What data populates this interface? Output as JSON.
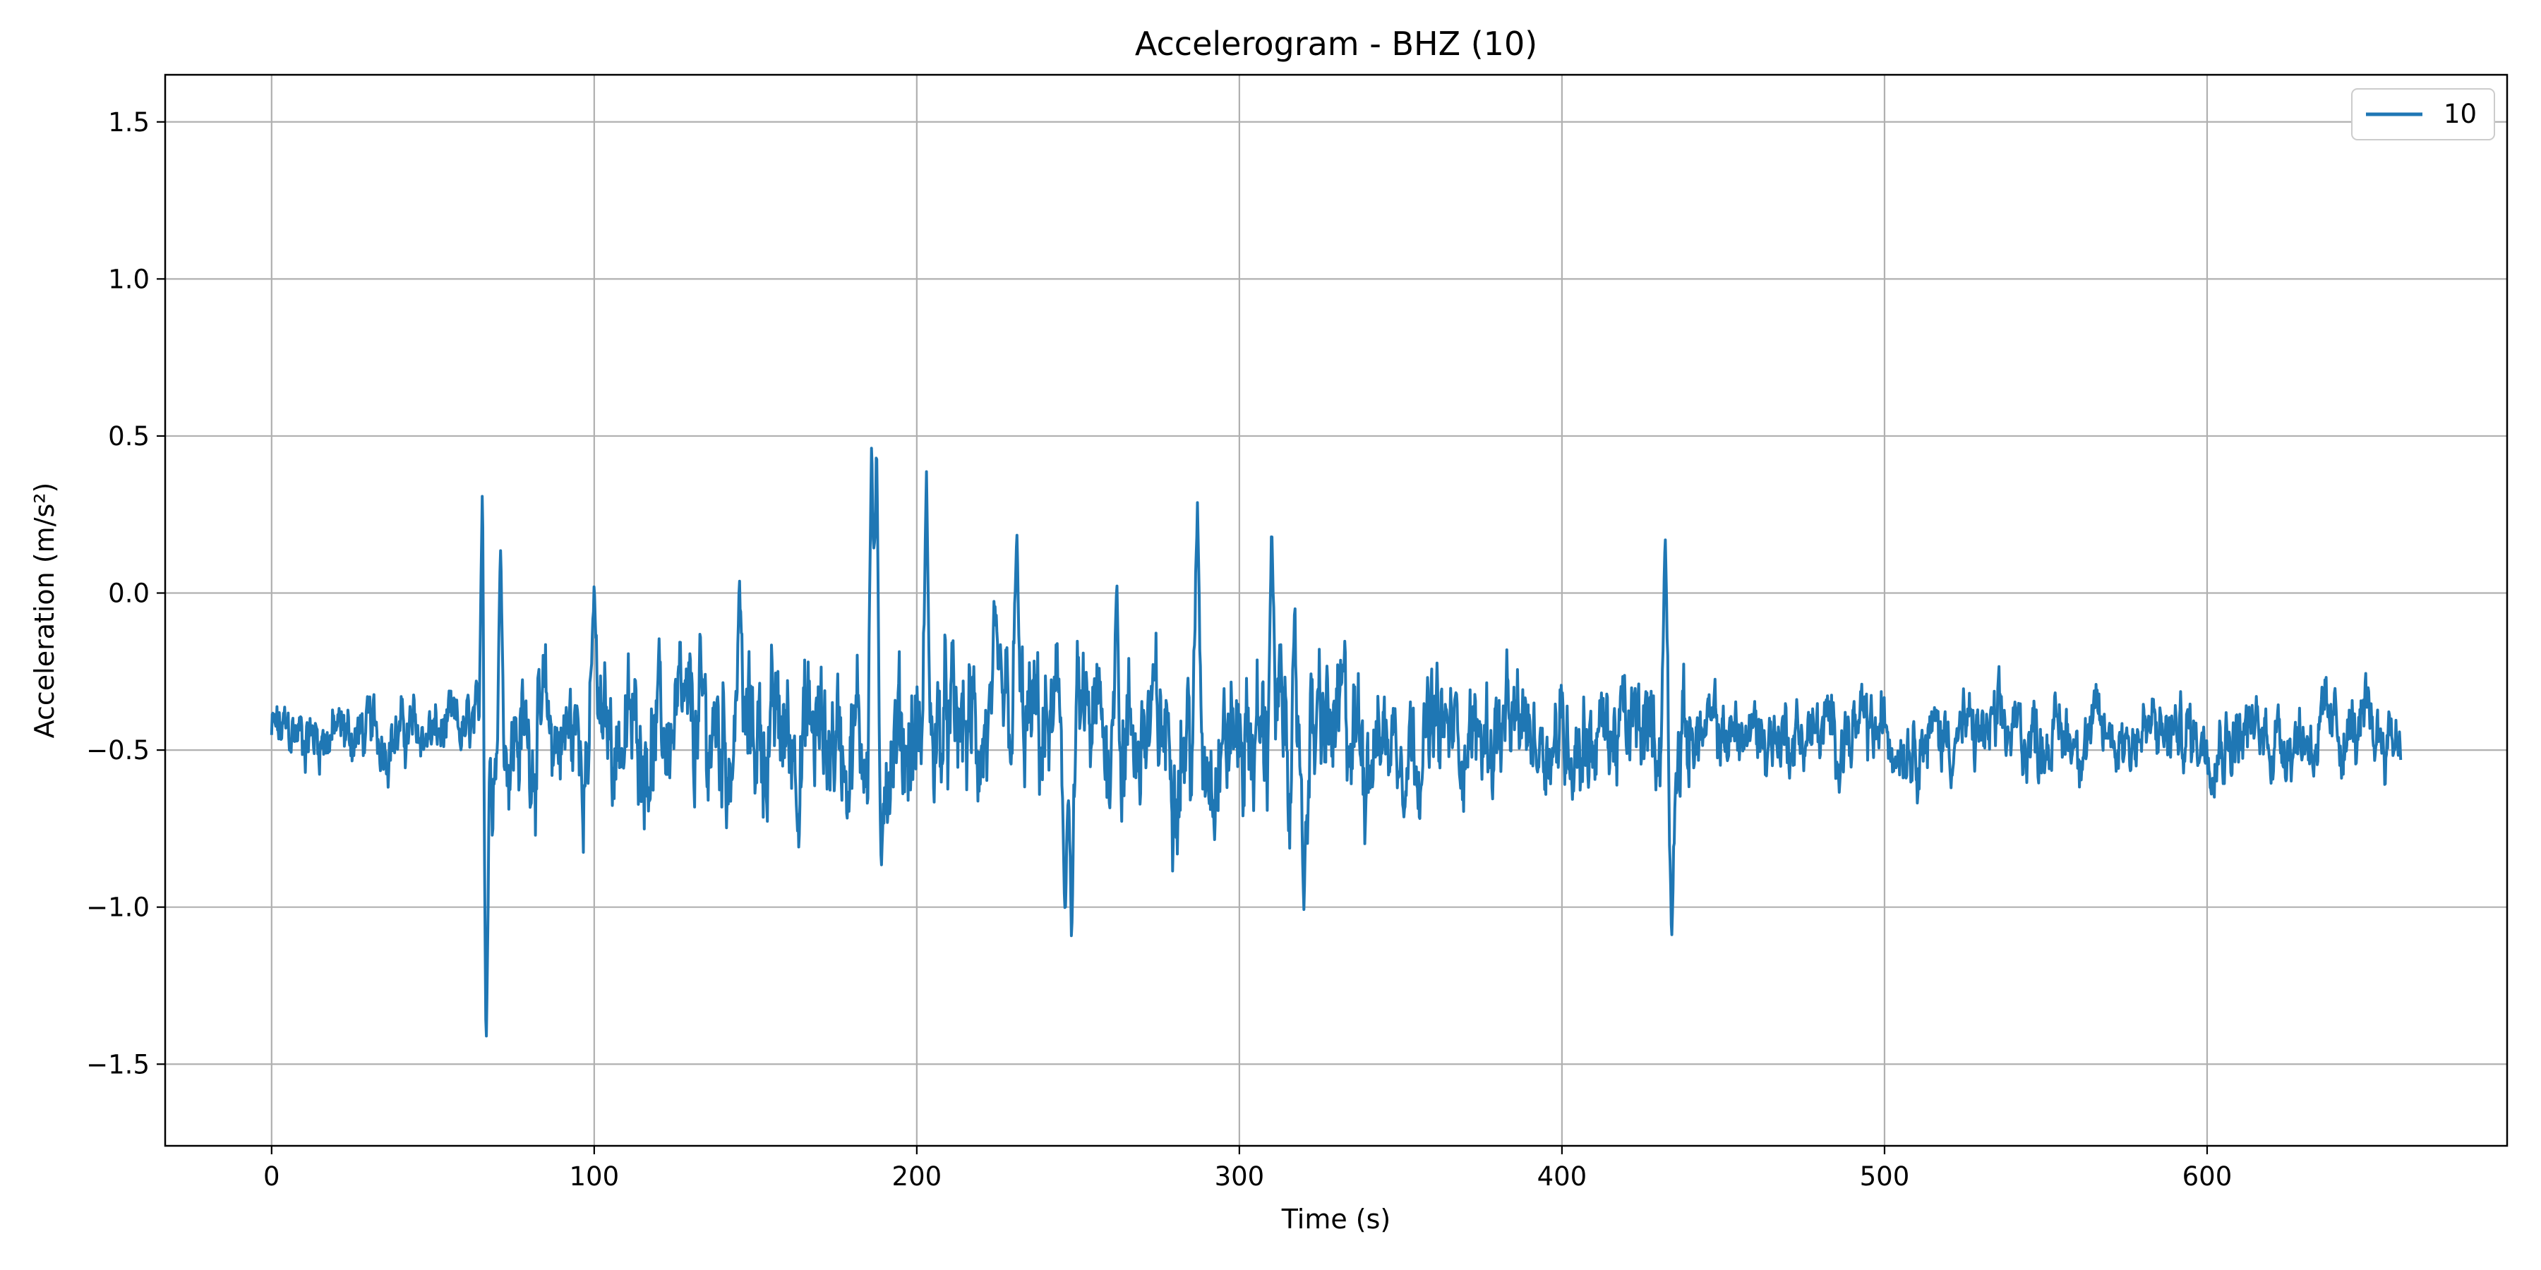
{
  "chart_data": {
    "type": "line",
    "title": "Accelerogram - BHZ (10)",
    "xlabel": "Time (s)",
    "ylabel": "Acceleration (m/s²)",
    "xlim": [
      -33,
      693
    ],
    "ylim": [
      -1.76,
      1.65
    ],
    "xticks": [
      0,
      100,
      200,
      300,
      400,
      500,
      600
    ],
    "xtick_labels": [
      "0",
      "100",
      "200",
      "300",
      "400",
      "500",
      "600"
    ],
    "yticks": [
      -1.5,
      -1.0,
      -0.5,
      0.0,
      0.5,
      1.0,
      1.5
    ],
    "ytick_labels": [
      "−1.5",
      "−1.0",
      "−0.5",
      "0.0",
      "0.5",
      "1.0",
      "1.5"
    ],
    "grid": true,
    "legend_position": "top-right",
    "series": [
      {
        "name": "10",
        "color": "#1f77b4",
        "x_start": 0,
        "x_end": 660,
        "baseline": -0.45,
        "noise_amplitude": 0.13,
        "peaks": [
          {
            "x": 65.5,
            "y": 0.51
          },
          {
            "x": 66.5,
            "y": -1.47
          },
          {
            "x": 71,
            "y": 0.15
          },
          {
            "x": 100,
            "y": 0.04
          },
          {
            "x": 145,
            "y": 0.06
          },
          {
            "x": 186,
            "y": 0.5
          },
          {
            "x": 187.5,
            "y": 0.5
          },
          {
            "x": 189,
            "y": -0.9
          },
          {
            "x": 203,
            "y": 0.39
          },
          {
            "x": 231,
            "y": 0.21
          },
          {
            "x": 246,
            "y": -1.03
          },
          {
            "x": 248,
            "y": -1.13
          },
          {
            "x": 262,
            "y": 0.05
          },
          {
            "x": 287,
            "y": 0.29
          },
          {
            "x": 310,
            "y": 0.24
          },
          {
            "x": 320,
            "y": -1.01
          },
          {
            "x": 432,
            "y": 0.2
          },
          {
            "x": 434,
            "y": -1.12
          }
        ]
      }
    ]
  }
}
